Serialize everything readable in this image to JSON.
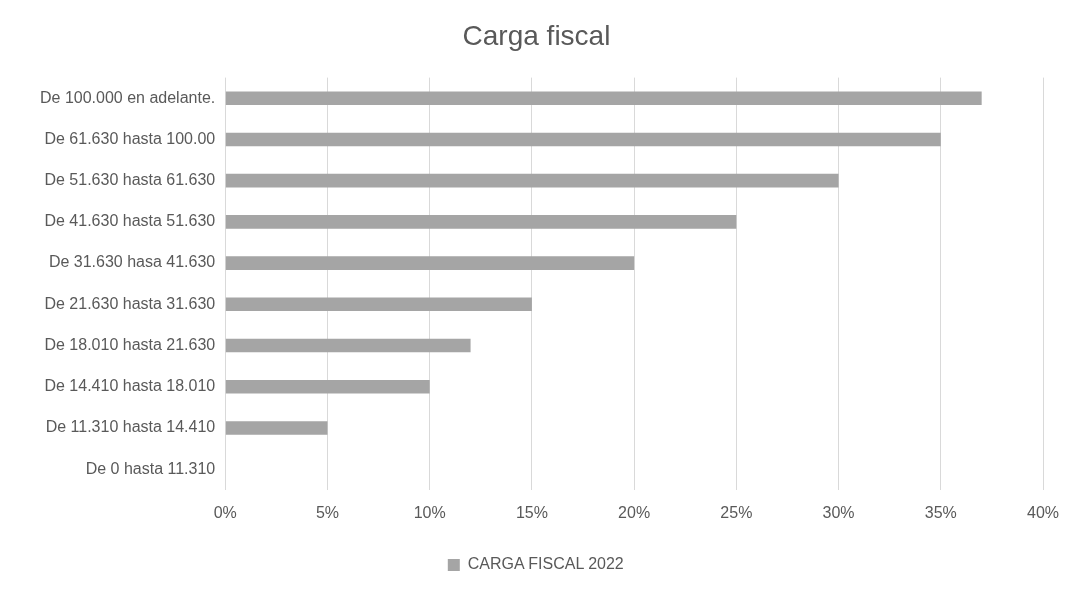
{
  "chart_data": {
    "type": "bar",
    "orientation": "horizontal",
    "title": "Carga fiscal",
    "categories": [
      "De 100.000 en adelante.",
      "De 61.630 hasta 100.00",
      "De 51.630 hasta 61.630",
      "De 41.630 hasta 51.630",
      "De 31.630 hasa 41.630",
      "De 21.630 hasta 31.630",
      "De 18.010 hasta 21.630",
      "De 14.410 hasta 18.010",
      "De 11.310 hasta 14.410",
      "De 0 hasta 11.310"
    ],
    "series": [
      {
        "name": "CARGA FISCAL 2022",
        "color": "#a5a5a5",
        "values": [
          37,
          35,
          30,
          25,
          20,
          15,
          12,
          10,
          5,
          0
        ]
      }
    ],
    "xlim": [
      0,
      40
    ],
    "xticks": [
      {
        "value": 0,
        "label": "0%"
      },
      {
        "value": 5,
        "label": "5%"
      },
      {
        "value": 10,
        "label": "10%"
      },
      {
        "value": 15,
        "label": "15%"
      },
      {
        "value": 20,
        "label": "20%"
      },
      {
        "value": 25,
        "label": "25%"
      },
      {
        "value": 30,
        "label": "30%"
      },
      {
        "value": 35,
        "label": "35%"
      },
      {
        "value": 40,
        "label": "40%"
      }
    ],
    "grid": "x",
    "legend": "bottom"
  }
}
